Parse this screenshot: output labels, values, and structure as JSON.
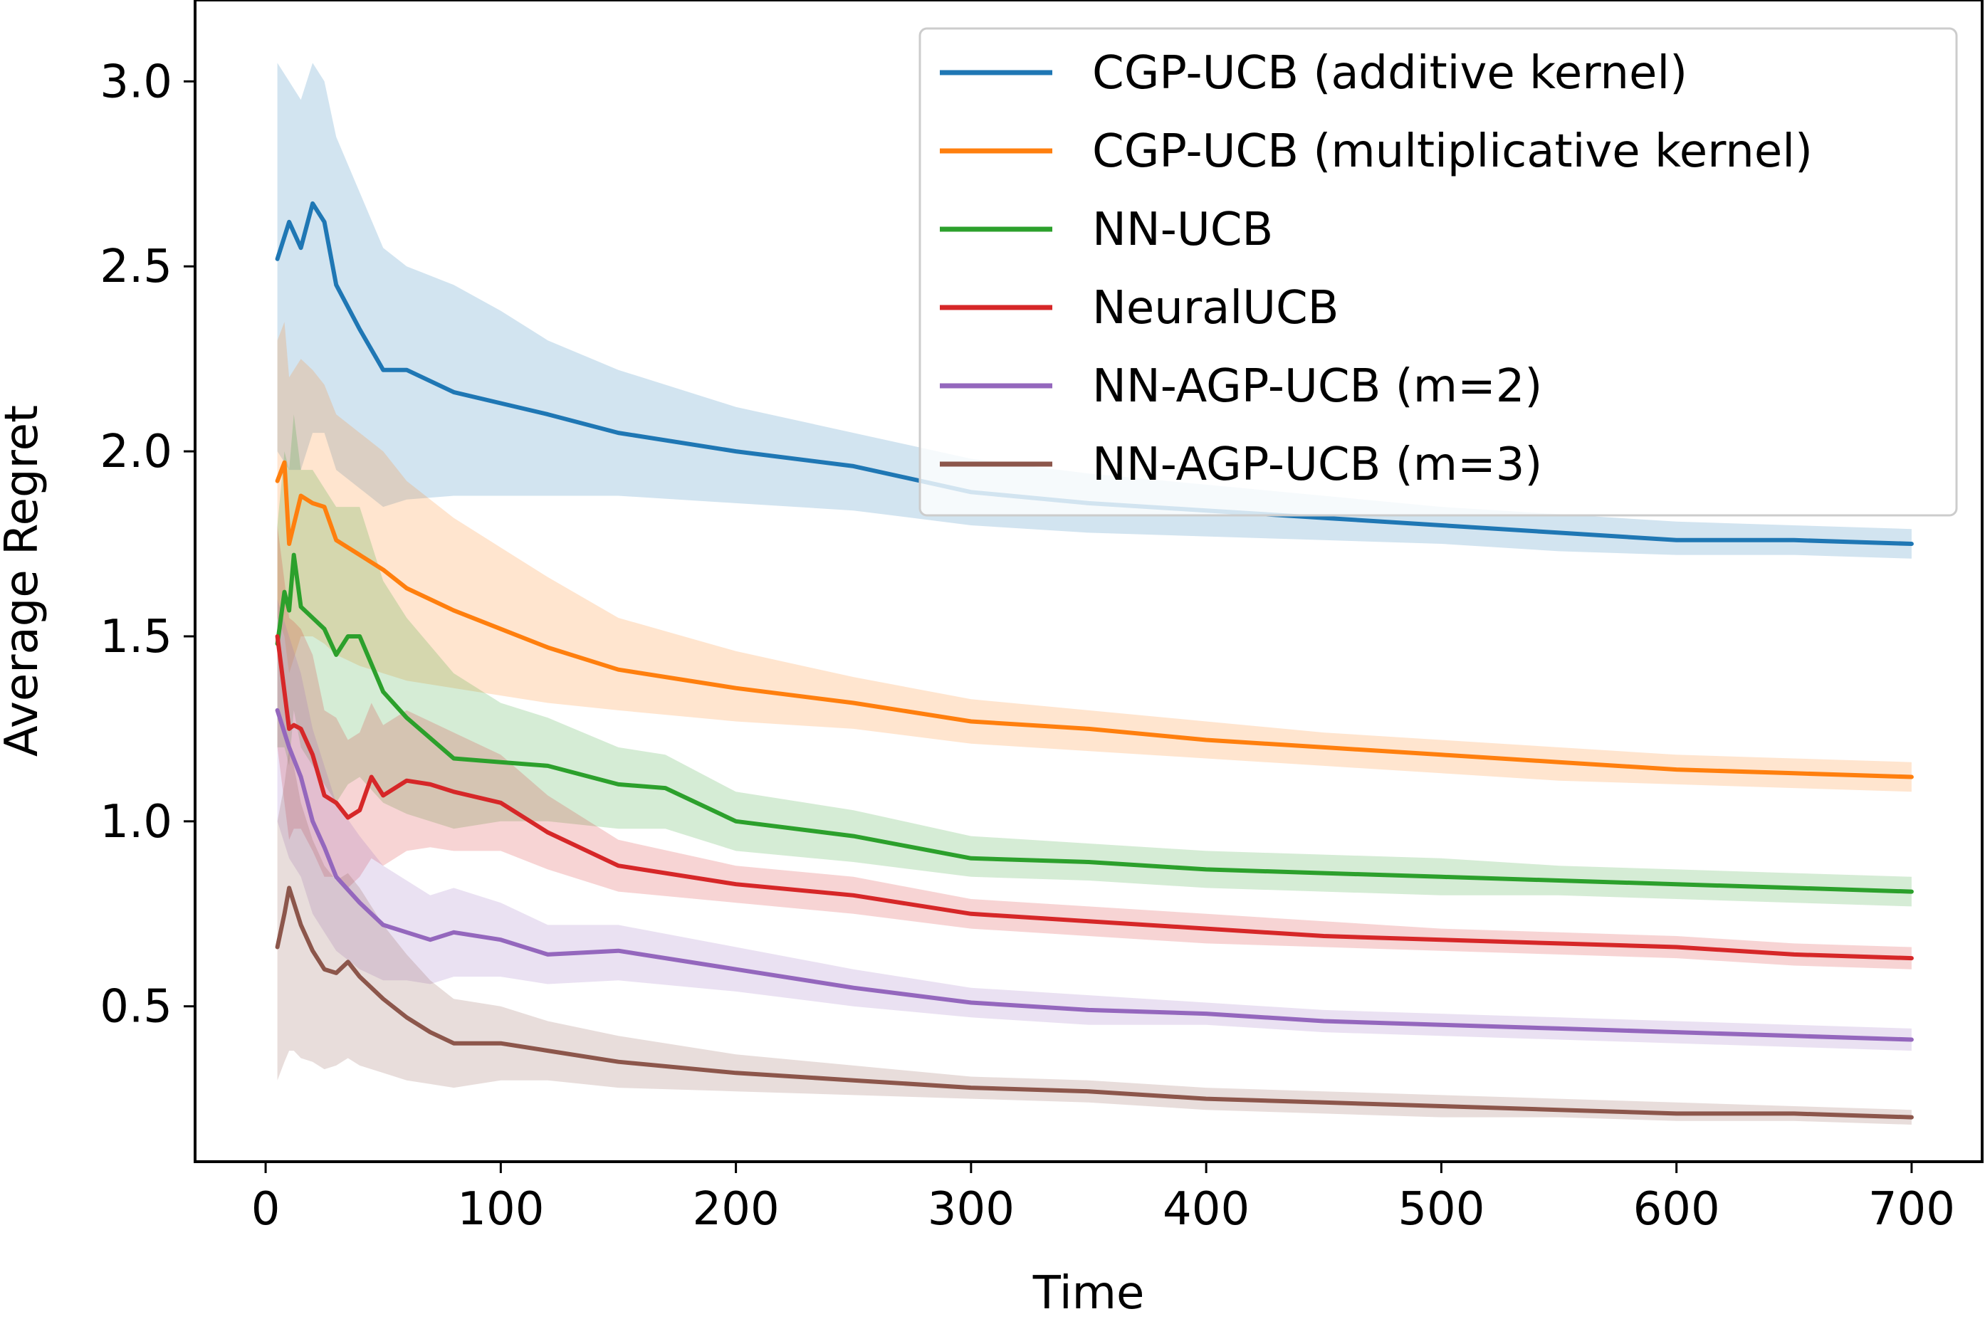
{
  "chart_data": {
    "type": "line",
    "title": "",
    "xlabel": "Time",
    "ylabel": "Average Regret",
    "xlim": [
      -30,
      730
    ],
    "ylim": [
      0.08,
      3.22
    ],
    "xticks": [
      0,
      100,
      200,
      300,
      400,
      500,
      600,
      700
    ],
    "xtick_labels": [
      "0",
      "100",
      "200",
      "300",
      "400",
      "500",
      "600",
      "700"
    ],
    "yticks": [
      0.5,
      1.0,
      1.5,
      2.0,
      2.5,
      3.0
    ],
    "ytick_labels": [
      "0.5",
      "1.0",
      "1.5",
      "2.0",
      "2.5",
      "3.0"
    ],
    "grid": false,
    "legend_position": "top-right",
    "series": [
      {
        "name": "CGP-UCB (additive kernel)",
        "color": "#1f77b4",
        "x": [
          5,
          10,
          15,
          20,
          25,
          30,
          40,
          50,
          60,
          80,
          100,
          120,
          150,
          200,
          250,
          300,
          350,
          400,
          450,
          500,
          550,
          600,
          650,
          700
        ],
        "mean": [
          2.52,
          2.62,
          2.55,
          2.67,
          2.62,
          2.45,
          2.33,
          2.22,
          2.22,
          2.16,
          2.13,
          2.1,
          2.05,
          2.0,
          1.96,
          1.89,
          1.86,
          1.84,
          1.82,
          1.8,
          1.78,
          1.76,
          1.76,
          1.75
        ],
        "lower": [
          2.0,
          1.95,
          1.95,
          2.05,
          2.05,
          1.95,
          1.9,
          1.85,
          1.87,
          1.88,
          1.88,
          1.88,
          1.88,
          1.86,
          1.84,
          1.8,
          1.78,
          1.77,
          1.76,
          1.75,
          1.73,
          1.72,
          1.72,
          1.71
        ],
        "upper": [
          3.05,
          3.0,
          2.95,
          3.05,
          3.0,
          2.85,
          2.7,
          2.55,
          2.5,
          2.45,
          2.38,
          2.3,
          2.22,
          2.12,
          2.05,
          1.98,
          1.94,
          1.91,
          1.88,
          1.85,
          1.83,
          1.81,
          1.8,
          1.79
        ]
      },
      {
        "name": "CGP-UCB (multiplicative kernel)",
        "color": "#ff7f0e",
        "x": [
          5,
          8,
          10,
          15,
          20,
          25,
          30,
          40,
          50,
          60,
          80,
          100,
          120,
          150,
          200,
          250,
          300,
          350,
          400,
          450,
          500,
          550,
          600,
          650,
          700
        ],
        "mean": [
          1.92,
          1.97,
          1.75,
          1.88,
          1.86,
          1.85,
          1.76,
          1.72,
          1.68,
          1.63,
          1.57,
          1.52,
          1.47,
          1.41,
          1.36,
          1.32,
          1.27,
          1.25,
          1.22,
          1.2,
          1.18,
          1.16,
          1.14,
          1.13,
          1.12
        ],
        "lower": [
          1.55,
          1.5,
          1.4,
          1.5,
          1.5,
          1.48,
          1.45,
          1.42,
          1.4,
          1.38,
          1.36,
          1.34,
          1.32,
          1.3,
          1.27,
          1.25,
          1.21,
          1.19,
          1.17,
          1.15,
          1.13,
          1.11,
          1.1,
          1.09,
          1.08
        ],
        "upper": [
          2.3,
          2.35,
          2.2,
          2.25,
          2.22,
          2.18,
          2.1,
          2.05,
          2.0,
          1.92,
          1.82,
          1.74,
          1.66,
          1.55,
          1.46,
          1.39,
          1.33,
          1.3,
          1.27,
          1.24,
          1.22,
          1.2,
          1.18,
          1.17,
          1.16
        ]
      },
      {
        "name": "NN-UCB",
        "color": "#2ca02c",
        "x": [
          5,
          8,
          10,
          12,
          15,
          20,
          25,
          30,
          35,
          40,
          50,
          60,
          80,
          100,
          120,
          150,
          170,
          200,
          250,
          300,
          350,
          400,
          450,
          500,
          550,
          600,
          650,
          700
        ],
        "mean": [
          1.48,
          1.62,
          1.57,
          1.72,
          1.58,
          1.55,
          1.52,
          1.45,
          1.5,
          1.5,
          1.35,
          1.28,
          1.17,
          1.16,
          1.15,
          1.1,
          1.09,
          1.0,
          0.96,
          0.9,
          0.89,
          0.87,
          0.86,
          0.85,
          0.84,
          0.83,
          0.82,
          0.81
        ],
        "lower": [
          1.2,
          1.2,
          1.15,
          1.3,
          1.2,
          1.15,
          1.1,
          1.05,
          1.1,
          1.12,
          1.05,
          1.02,
          0.98,
          1.0,
          1.0,
          0.98,
          0.98,
          0.92,
          0.89,
          0.85,
          0.84,
          0.82,
          0.81,
          0.8,
          0.8,
          0.79,
          0.78,
          0.77
        ],
        "upper": [
          1.8,
          2.0,
          1.95,
          2.1,
          1.95,
          1.95,
          1.9,
          1.85,
          1.85,
          1.85,
          1.65,
          1.55,
          1.4,
          1.32,
          1.28,
          1.2,
          1.18,
          1.08,
          1.03,
          0.96,
          0.94,
          0.92,
          0.91,
          0.9,
          0.88,
          0.87,
          0.86,
          0.85
        ]
      },
      {
        "name": "NeuralUCB",
        "color": "#d62728",
        "x": [
          5,
          8,
          10,
          12,
          15,
          20,
          25,
          30,
          35,
          40,
          45,
          50,
          60,
          70,
          80,
          100,
          120,
          150,
          200,
          250,
          300,
          350,
          400,
          450,
          500,
          550,
          600,
          650,
          700
        ],
        "mean": [
          1.5,
          1.35,
          1.25,
          1.26,
          1.25,
          1.18,
          1.07,
          1.05,
          1.01,
          1.03,
          1.12,
          1.07,
          1.11,
          1.1,
          1.08,
          1.05,
          0.97,
          0.88,
          0.83,
          0.8,
          0.75,
          0.73,
          0.71,
          0.69,
          0.68,
          0.67,
          0.66,
          0.64,
          0.63
        ],
        "lower": [
          1.2,
          1.05,
          0.95,
          0.98,
          0.98,
          0.92,
          0.85,
          0.85,
          0.82,
          0.85,
          0.9,
          0.88,
          0.92,
          0.93,
          0.92,
          0.92,
          0.87,
          0.81,
          0.78,
          0.75,
          0.71,
          0.69,
          0.67,
          0.66,
          0.65,
          0.64,
          0.63,
          0.61,
          0.6
        ],
        "upper": [
          1.8,
          1.65,
          1.55,
          1.54,
          1.52,
          1.45,
          1.3,
          1.28,
          1.22,
          1.24,
          1.32,
          1.26,
          1.3,
          1.27,
          1.24,
          1.18,
          1.07,
          0.95,
          0.88,
          0.85,
          0.79,
          0.77,
          0.75,
          0.73,
          0.71,
          0.7,
          0.69,
          0.67,
          0.66
        ]
      },
      {
        "name": "NN-AGP-UCB (m=2)",
        "color": "#9467bd",
        "x": [
          5,
          10,
          15,
          20,
          25,
          30,
          40,
          50,
          60,
          70,
          80,
          100,
          120,
          150,
          200,
          250,
          300,
          350,
          400,
          450,
          500,
          550,
          600,
          650,
          700
        ],
        "mean": [
          1.3,
          1.2,
          1.12,
          1.0,
          0.93,
          0.85,
          0.78,
          0.72,
          0.7,
          0.68,
          0.7,
          0.68,
          0.64,
          0.65,
          0.6,
          0.55,
          0.51,
          0.49,
          0.48,
          0.46,
          0.45,
          0.44,
          0.43,
          0.42,
          0.41
        ],
        "lower": [
          1.0,
          0.9,
          0.85,
          0.75,
          0.7,
          0.65,
          0.6,
          0.57,
          0.57,
          0.56,
          0.58,
          0.58,
          0.56,
          0.57,
          0.54,
          0.5,
          0.47,
          0.45,
          0.45,
          0.43,
          0.42,
          0.41,
          0.4,
          0.39,
          0.38
        ],
        "upper": [
          1.6,
          1.5,
          1.4,
          1.25,
          1.15,
          1.05,
          0.96,
          0.88,
          0.84,
          0.8,
          0.82,
          0.78,
          0.72,
          0.72,
          0.66,
          0.6,
          0.55,
          0.53,
          0.51,
          0.49,
          0.48,
          0.47,
          0.46,
          0.45,
          0.44
        ]
      },
      {
        "name": "NN-AGP-UCB (m=3)",
        "color": "#8c564b",
        "x": [
          5,
          8,
          10,
          12,
          15,
          20,
          25,
          30,
          35,
          40,
          50,
          60,
          70,
          80,
          100,
          120,
          150,
          200,
          250,
          300,
          350,
          400,
          450,
          500,
          550,
          600,
          650,
          700
        ],
        "mean": [
          0.66,
          0.75,
          0.82,
          0.78,
          0.72,
          0.65,
          0.6,
          0.59,
          0.62,
          0.58,
          0.52,
          0.47,
          0.43,
          0.4,
          0.4,
          0.38,
          0.35,
          0.32,
          0.3,
          0.28,
          0.27,
          0.25,
          0.24,
          0.23,
          0.22,
          0.21,
          0.21,
          0.2
        ],
        "lower": [
          0.3,
          0.35,
          0.38,
          0.38,
          0.36,
          0.35,
          0.33,
          0.34,
          0.36,
          0.34,
          0.32,
          0.3,
          0.29,
          0.28,
          0.3,
          0.3,
          0.28,
          0.27,
          0.26,
          0.25,
          0.24,
          0.22,
          0.21,
          0.2,
          0.2,
          0.19,
          0.19,
          0.18
        ],
        "upper": [
          1.0,
          1.1,
          1.2,
          1.15,
          1.05,
          0.95,
          0.88,
          0.84,
          0.86,
          0.82,
          0.72,
          0.64,
          0.57,
          0.52,
          0.5,
          0.46,
          0.42,
          0.37,
          0.34,
          0.31,
          0.3,
          0.28,
          0.27,
          0.26,
          0.25,
          0.24,
          0.23,
          0.22
        ]
      }
    ]
  }
}
